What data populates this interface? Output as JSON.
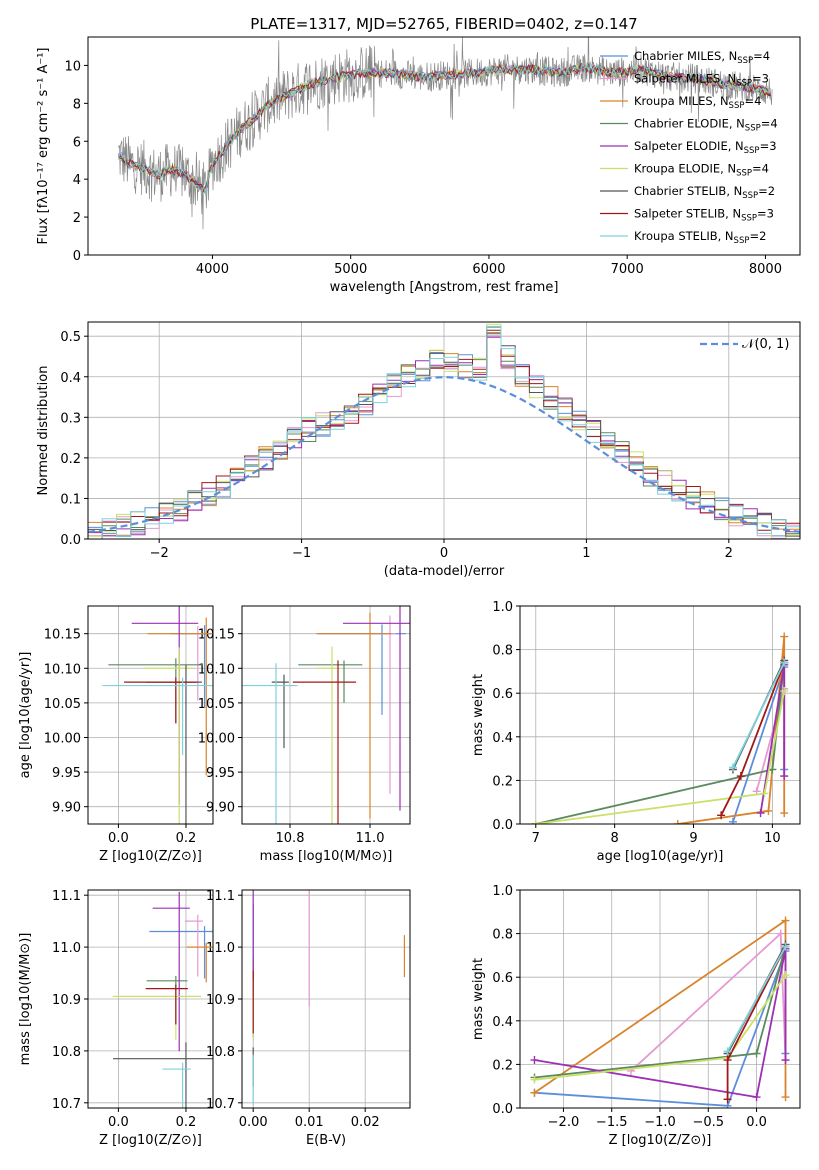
{
  "chart_data": [
    {
      "type": "line",
      "title": "PLATE=1317, MJD=52765, FIBERID=0402, z=0.147",
      "xlabel": "wavelength [Angstrom, rest frame]",
      "ylabel": "Flux [fλ10⁻¹⁷ erg cm⁻² s⁻¹ A⁻¹]",
      "xlim": [
        3100,
        8250
      ],
      "ylim": [
        0,
        11.5
      ],
      "xticks": [
        "4000",
        "5000",
        "6000",
        "7000",
        "8000"
      ],
      "yticks": [
        "0",
        "2",
        "4",
        "6",
        "8",
        "10"
      ],
      "spectrum_envelope": {
        "x": [
          3320,
          3400,
          3500,
          3600,
          3700,
          3800,
          3900,
          3950,
          4000,
          4100,
          4200,
          4300,
          4400,
          4500,
          4700,
          4900,
          5100,
          5300,
          5500,
          5700,
          5900,
          6100,
          6300,
          6500,
          6700,
          6900,
          7100,
          7300,
          7500,
          7700,
          7900,
          8050
        ],
        "y": [
          5.3,
          4.8,
          4.6,
          4.2,
          4.5,
          4.3,
          3.6,
          3.4,
          4.8,
          5.7,
          6.6,
          7.2,
          7.9,
          8.3,
          9.0,
          9.4,
          9.6,
          9.6,
          9.4,
          9.5,
          9.6,
          9.8,
          9.8,
          9.6,
          9.9,
          9.6,
          9.8,
          9.4,
          9.3,
          9.0,
          8.8,
          8.6
        ]
      },
      "legend_location": "upper right",
      "legend": [
        {
          "label": "Chabrier MILES, N",
          "sub": "SSP",
          "suffix": "=4",
          "color": "#5b8fd9"
        },
        {
          "label": "Salpeter MILES, N",
          "sub": "SSP",
          "suffix": "=3",
          "color": "#e49bd2"
        },
        {
          "label": "Kroupa MILES, N",
          "sub": "SSP",
          "suffix": "=4",
          "color": "#d9832b"
        },
        {
          "label": "Chabrier ELODIE, N",
          "sub": "SSP",
          "suffix": "=4",
          "color": "#5b8a5e"
        },
        {
          "label": "Salpeter ELODIE, N",
          "sub": "SSP",
          "suffix": "=3",
          "color": "#9b30b4"
        },
        {
          "label": "Kroupa ELODIE, N",
          "sub": "SSP",
          "suffix": "=4",
          "color": "#cbe06b"
        },
        {
          "label": "Chabrier STELIB, N",
          "sub": "SSP",
          "suffix": "=2",
          "color": "#555555"
        },
        {
          "label": "Salpeter STELIB, N",
          "sub": "SSP",
          "suffix": "=3",
          "color": "#a01818"
        },
        {
          "label": "Kroupa STELIB, N",
          "sub": "SSP",
          "suffix": "=2",
          "color": "#7dd3dc"
        }
      ]
    },
    {
      "type": "line",
      "xlabel": "(data-model)/error",
      "ylabel": "Normed distribution",
      "xlim": [
        -2.5,
        2.5
      ],
      "ylim": [
        0,
        0.535
      ],
      "xticks": [
        "−2",
        "−1",
        "0",
        "1",
        "2"
      ],
      "yticks": [
        "0.0",
        "0.1",
        "0.2",
        "0.3",
        "0.4",
        "0.5"
      ],
      "legend": [
        {
          "label": "𝒩(0, 1)",
          "color": "#5b8fd9",
          "style": "dashed"
        }
      ],
      "histogram_bin_width": 0.1,
      "histogram_envelope": {
        "x": [
          -2.45,
          -2.15,
          -1.85,
          -1.55,
          -1.25,
          -0.95,
          -0.65,
          -0.35,
          -0.05,
          0.25,
          0.35,
          0.55,
          0.85,
          1.15,
          1.45,
          1.75,
          2.05,
          2.35
        ],
        "y": [
          0.02,
          0.04,
          0.07,
          0.13,
          0.2,
          0.27,
          0.31,
          0.38,
          0.44,
          0.42,
          0.5,
          0.4,
          0.32,
          0.24,
          0.16,
          0.1,
          0.06,
          0.025
        ]
      }
    },
    {
      "type": "scatter",
      "xlabel": "Z [log10(Z/Z⊙)]",
      "ylabel": "age  [log10(age/yr)]",
      "xlim": [
        -0.09,
        0.28
      ],
      "ylim": [
        9.875,
        10.19
      ],
      "xticks": [
        "0.0",
        "0.2"
      ],
      "yticks": [
        "9.90",
        "9.95",
        "10.00",
        "10.05",
        "10.10",
        "10.15"
      ],
      "points": [
        {
          "series": "Chabrier MILES",
          "x": 0.255,
          "y": 10.15,
          "color": "#5b8fd9"
        },
        {
          "series": "Salpeter MILES",
          "x": 0.235,
          "y": 10.15,
          "color": "#e49bd2"
        },
        {
          "series": "Kroupa MILES",
          "x": 0.26,
          "y": 10.15,
          "color": "#d9832b"
        },
        {
          "series": "Chabrier ELODIE",
          "x": 0.17,
          "y": 10.105,
          "color": "#5b8a5e"
        },
        {
          "series": "Salpeter ELODIE",
          "x": 0.18,
          "y": 10.165,
          "color": "#9b30b4"
        },
        {
          "series": "Kroupa ELODIE",
          "x": 0.18,
          "y": 10.1,
          "color": "#cbe06b"
        },
        {
          "series": "Chabrier STELIB",
          "x": 0.2,
          "y": 10.08,
          "color": "#555555"
        },
        {
          "series": "Salpeter STELIB",
          "x": 0.17,
          "y": 10.08,
          "color": "#a01818"
        },
        {
          "series": "Kroupa STELIB",
          "x": 0.19,
          "y": 10.075,
          "color": "#7dd3dc"
        }
      ]
    },
    {
      "type": "scatter",
      "xlabel": "mass [log10(M/M⊙)]",
      "xlim": [
        10.68,
        11.1
      ],
      "ylim": [
        9.875,
        10.19
      ],
      "xticks": [
        "10.8",
        "11.0"
      ],
      "yticks": [
        "9.90",
        "9.95",
        "10.00",
        "10.05",
        "10.10",
        "10.15"
      ]
    },
    {
      "type": "line",
      "xlabel": "age  [log10(age/yr)]",
      "ylabel": "mass weight",
      "xlim": [
        6.8,
        10.35
      ],
      "ylim": [
        0,
        1.0
      ],
      "xticks": [
        "7",
        "8",
        "9",
        "10"
      ],
      "yticks": [
        "0.0",
        "0.2",
        "0.4",
        "0.6",
        "0.8",
        "1.0"
      ],
      "series": [
        {
          "name": "Chabrier MILES",
          "color": "#5b8fd9",
          "x": [
            9.5,
            10.15,
            10.15
          ],
          "y": [
            0.01,
            0.72,
            0.25
          ]
        },
        {
          "name": "Salpeter MILES",
          "color": "#e49bd2",
          "x": [
            9.8,
            10.15,
            10.15
          ],
          "y": [
            0.15,
            0.62,
            0.22
          ]
        },
        {
          "name": "Kroupa MILES",
          "color": "#d9832b",
          "x": [
            8.8,
            9.95,
            10.15,
            10.15
          ],
          "y": [
            0.0,
            0.06,
            0.86,
            0.05
          ]
        },
        {
          "name": "Chabrier ELODIE",
          "color": "#5b8a5e",
          "x": [
            7.0,
            10.0,
            10.15
          ],
          "y": [
            0.0,
            0.25,
            0.74
          ]
        },
        {
          "name": "Salpeter ELODIE",
          "color": "#9b30b4",
          "x": [
            9.85,
            10.15,
            10.15
          ],
          "y": [
            0.05,
            0.73,
            0.22
          ]
        },
        {
          "name": "Kroupa ELODIE",
          "color": "#cbe06b",
          "x": [
            7.0,
            9.9,
            10.15
          ],
          "y": [
            0.0,
            0.14,
            0.61
          ]
        },
        {
          "name": "Chabrier STELIB",
          "color": "#555555",
          "x": [
            9.5,
            10.15
          ],
          "y": [
            0.25,
            0.75
          ]
        },
        {
          "name": "Salpeter STELIB",
          "color": "#a01818",
          "x": [
            9.35,
            9.6,
            10.15
          ],
          "y": [
            0.04,
            0.22,
            0.74
          ]
        },
        {
          "name": "Kroupa STELIB",
          "color": "#7dd3dc",
          "x": [
            9.5,
            10.15
          ],
          "y": [
            0.26,
            0.74
          ]
        }
      ]
    },
    {
      "type": "scatter",
      "xlabel": "Z [log10(Z/Z⊙)]",
      "ylabel": "mass [log10(M/M⊙)]",
      "xlim": [
        -0.09,
        0.28
      ],
      "ylim": [
        10.69,
        11.11
      ],
      "xticks": [
        "0.0",
        "0.2"
      ],
      "yticks": [
        "10.7",
        "10.8",
        "10.9",
        "11.0",
        "11.1"
      ],
      "points": [
        {
          "series": "Chabrier MILES",
          "x": 0.255,
          "y": 11.03,
          "color": "#5b8fd9"
        },
        {
          "series": "Salpeter MILES",
          "x": 0.235,
          "y": 11.05,
          "color": "#e49bd2"
        },
        {
          "series": "Kroupa MILES",
          "x": 0.26,
          "y": 11.0,
          "color": "#d9832b"
        },
        {
          "series": "Chabrier ELODIE",
          "x": 0.17,
          "y": 10.935,
          "color": "#5b8a5e"
        },
        {
          "series": "Salpeter ELODIE",
          "x": 0.18,
          "y": 11.075,
          "color": "#9b30b4"
        },
        {
          "series": "Kroupa ELODIE",
          "x": 0.17,
          "y": 10.905,
          "color": "#cbe06b"
        },
        {
          "series": "Chabrier STELIB",
          "x": 0.2,
          "y": 10.785,
          "color": "#555555"
        },
        {
          "series": "Salpeter STELIB",
          "x": 0.17,
          "y": 10.92,
          "color": "#a01818"
        },
        {
          "series": "Kroupa STELIB",
          "x": 0.19,
          "y": 10.765,
          "color": "#7dd3dc"
        }
      ]
    },
    {
      "type": "scatter",
      "xlabel": "E(B-V)",
      "xlim": [
        -0.002,
        0.028
      ],
      "ylim": [
        10.69,
        11.11
      ],
      "xticks": [
        "0.00",
        "0.01",
        "0.02"
      ],
      "yticks": [
        "10.7",
        "10.8",
        "10.9",
        "11.0",
        "11.1"
      ]
    },
    {
      "type": "line",
      "xlabel": "Z [log10(Z/Z⊙)]",
      "ylabel": "mass weight",
      "xlim": [
        -2.45,
        0.45
      ],
      "ylim": [
        0,
        1.0
      ],
      "xticks": [
        "−2.0",
        "−1.5",
        "−1.0",
        "−0.5",
        "0.0"
      ],
      "yticks": [
        "0.0",
        "0.2",
        "0.4",
        "0.6",
        "0.8",
        "1.0"
      ],
      "series": [
        {
          "name": "Chabrier MILES",
          "color": "#5b8fd9",
          "x": [
            -2.3,
            -0.3,
            0.3,
            0.3
          ],
          "y": [
            0.07,
            0.01,
            0.72,
            0.25
          ]
        },
        {
          "name": "Salpeter MILES",
          "color": "#e49bd2",
          "x": [
            -1.3,
            0.25,
            0.3
          ],
          "y": [
            0.17,
            0.8,
            0.22
          ]
        },
        {
          "name": "Kroupa MILES",
          "color": "#d9832b",
          "x": [
            -2.3,
            0.3,
            0.3
          ],
          "y": [
            0.07,
            0.86,
            0.05
          ]
        },
        {
          "name": "Chabrier ELODIE",
          "color": "#5b8a5e",
          "x": [
            -2.3,
            0.0,
            0.3
          ],
          "y": [
            0.14,
            0.25,
            0.74
          ]
        },
        {
          "name": "Salpeter ELODIE",
          "color": "#9b30b4",
          "x": [
            -2.3,
            0.0,
            0.3,
            0.3
          ],
          "y": [
            0.22,
            0.05,
            0.73,
            0.22
          ]
        },
        {
          "name": "Kroupa ELODIE",
          "color": "#cbe06b",
          "x": [
            -2.3,
            -0.3,
            0.3
          ],
          "y": [
            0.13,
            0.23,
            0.61
          ]
        },
        {
          "name": "Chabrier STELIB",
          "color": "#555555",
          "x": [
            -0.3,
            0.3
          ],
          "y": [
            0.25,
            0.75
          ]
        },
        {
          "name": "Salpeter STELIB",
          "color": "#a01818",
          "x": [
            -0.3,
            -0.3,
            0.3
          ],
          "y": [
            0.04,
            0.22,
            0.74
          ]
        },
        {
          "name": "Kroupa STELIB",
          "color": "#7dd3dc",
          "x": [
            -0.3,
            0.3
          ],
          "y": [
            0.26,
            0.74
          ]
        }
      ]
    }
  ]
}
